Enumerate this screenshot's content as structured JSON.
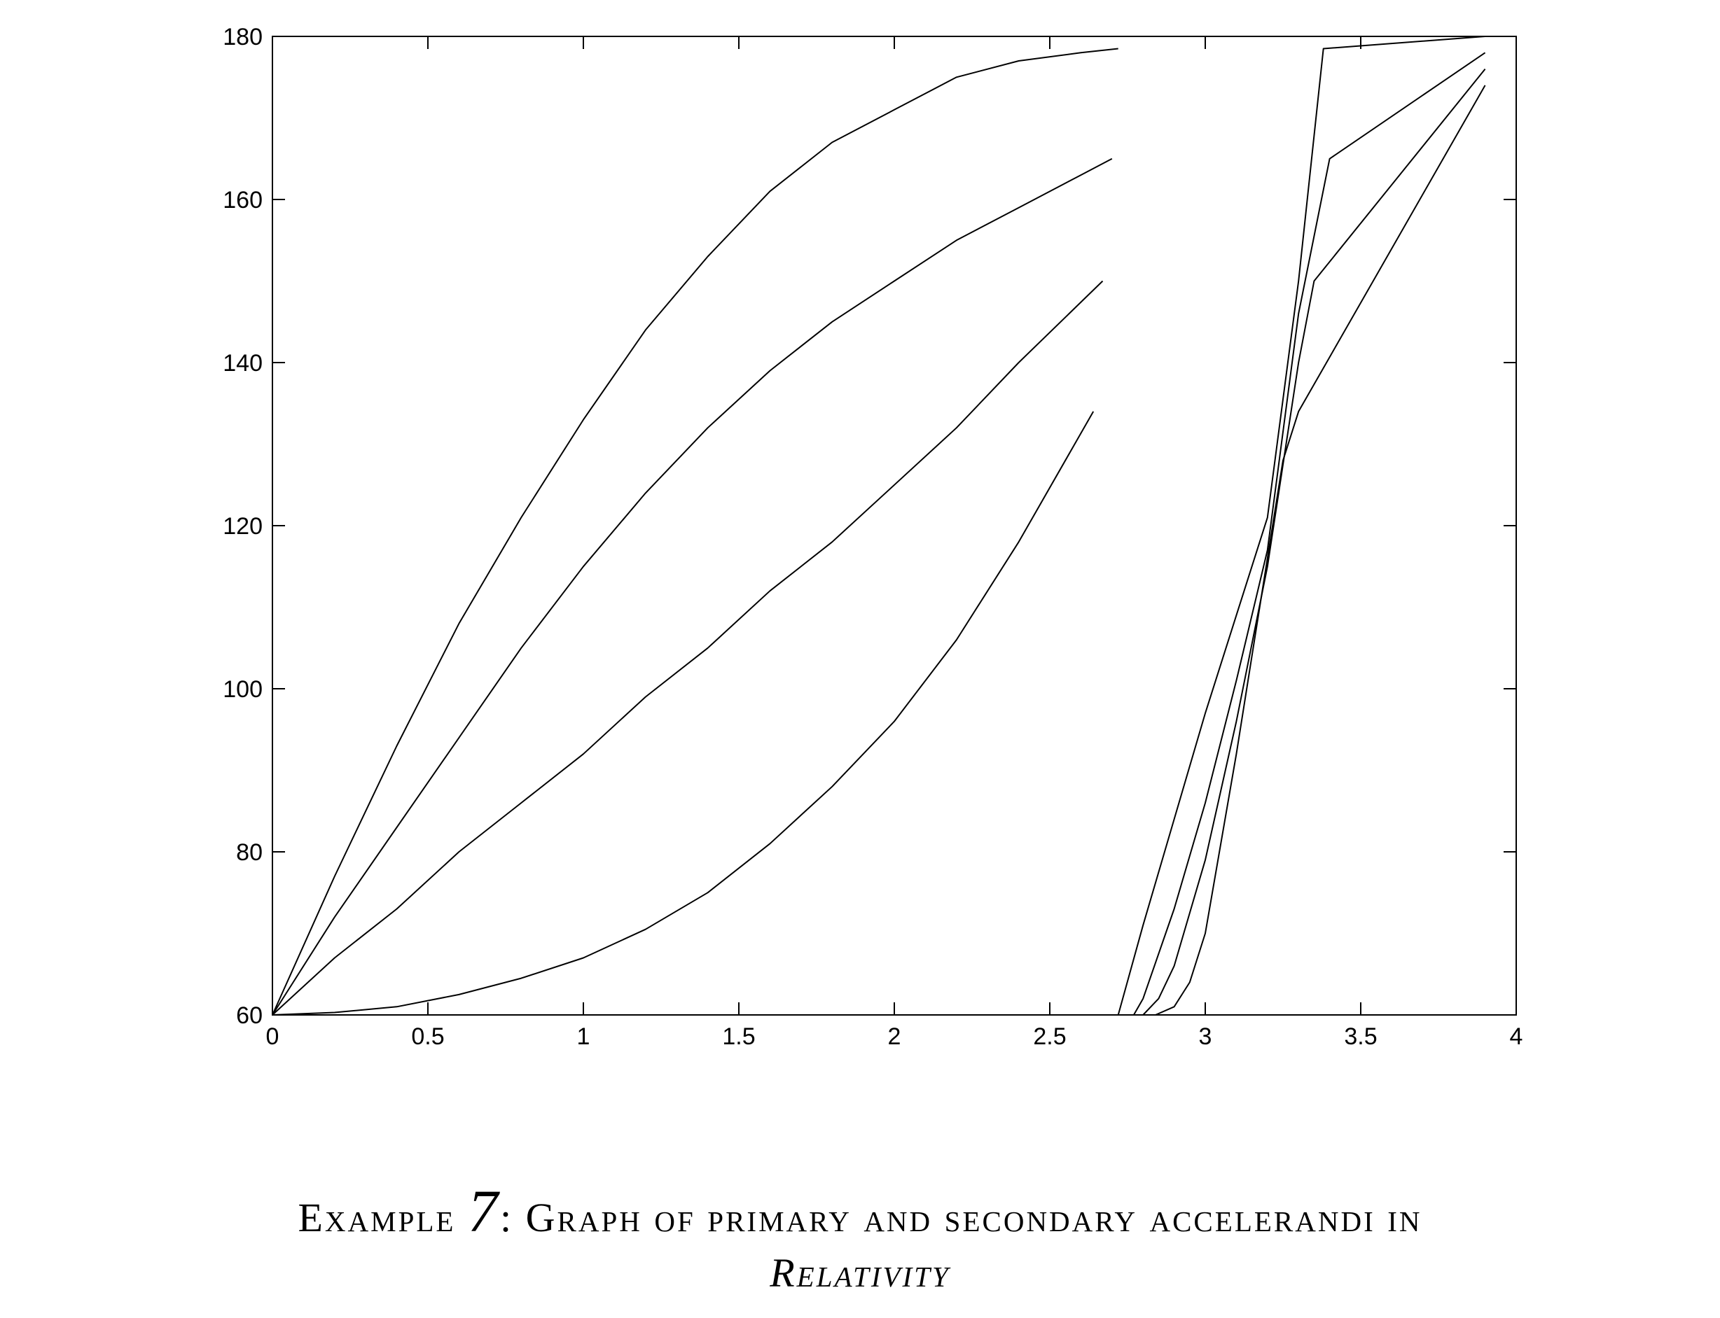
{
  "chart_data": {
    "type": "line",
    "title": "",
    "xlabel": "",
    "ylabel": "",
    "xlim": [
      0,
      4
    ],
    "ylim": [
      60,
      180
    ],
    "x_ticks": [
      "0",
      "0.5",
      "1",
      "1.5",
      "2",
      "2.5",
      "3",
      "3.5",
      "4"
    ],
    "y_ticks": [
      "60",
      "80",
      "100",
      "120",
      "140",
      "160",
      "180"
    ],
    "grid": false,
    "legend": "none",
    "line_color": "#000000",
    "series": [
      {
        "x": [
          0,
          0.2,
          0.4,
          0.6,
          0.8,
          1.0,
          1.2,
          1.4,
          1.6,
          1.8,
          2.0,
          2.2,
          2.4,
          2.6,
          2.72
        ],
        "y": [
          60,
          77,
          93,
          108,
          121,
          133,
          144,
          153,
          161,
          167,
          171,
          175,
          177,
          178,
          178.5
        ]
      },
      {
        "x": [
          0,
          0.2,
          0.4,
          0.6,
          0.8,
          1.0,
          1.2,
          1.4,
          1.6,
          1.8,
          2.0,
          2.2,
          2.4,
          2.6,
          2.7
        ],
        "y": [
          60,
          72,
          83,
          94,
          105,
          115,
          124,
          132,
          139,
          145,
          150,
          155,
          159,
          163,
          165
        ]
      },
      {
        "x": [
          0,
          0.2,
          0.4,
          0.6,
          0.8,
          1.0,
          1.2,
          1.4,
          1.6,
          1.8,
          2.0,
          2.2,
          2.4,
          2.67
        ],
        "y": [
          60,
          67,
          73,
          80,
          86,
          92,
          99,
          105,
          112,
          118,
          125,
          132,
          140,
          150
        ]
      },
      {
        "x": [
          0,
          0.2,
          0.4,
          0.6,
          0.8,
          1.0,
          1.2,
          1.4,
          1.6,
          1.8,
          2.0,
          2.2,
          2.4,
          2.64
        ],
        "y": [
          60,
          60.3,
          61,
          62.5,
          64.5,
          67,
          70.5,
          75,
          81,
          88,
          96,
          106,
          118,
          134
        ]
      },
      {
        "x": [
          2.72,
          2.8,
          2.9,
          3.0,
          3.1,
          3.2,
          3.3,
          3.38,
          3.9
        ],
        "y": [
          60,
          71,
          84,
          97,
          109,
          121,
          150,
          178.5,
          180
        ]
      },
      {
        "x": [
          2.77,
          2.8,
          2.9,
          3.0,
          3.1,
          3.2,
          3.3,
          3.4,
          3.9
        ],
        "y": [
          60,
          62,
          73,
          86,
          101,
          117,
          146,
          165,
          178
        ]
      },
      {
        "x": [
          2.8,
          2.85,
          2.9,
          3.0,
          3.1,
          3.2,
          3.3,
          3.35,
          3.9
        ],
        "y": [
          60,
          62,
          66,
          79,
          96,
          115,
          140,
          150,
          176
        ]
      },
      {
        "x": [
          2.84,
          2.9,
          2.95,
          3.0,
          3.1,
          3.2,
          3.25,
          3.3,
          3.9
        ],
        "y": [
          60,
          61,
          64,
          70,
          92,
          116,
          128,
          134,
          174
        ]
      }
    ]
  },
  "caption": {
    "line1_prefix": "Example ",
    "number": "7",
    "line1_suffix": ": Graph of primary and secondary accelerandi in",
    "line2": "Relativity"
  }
}
